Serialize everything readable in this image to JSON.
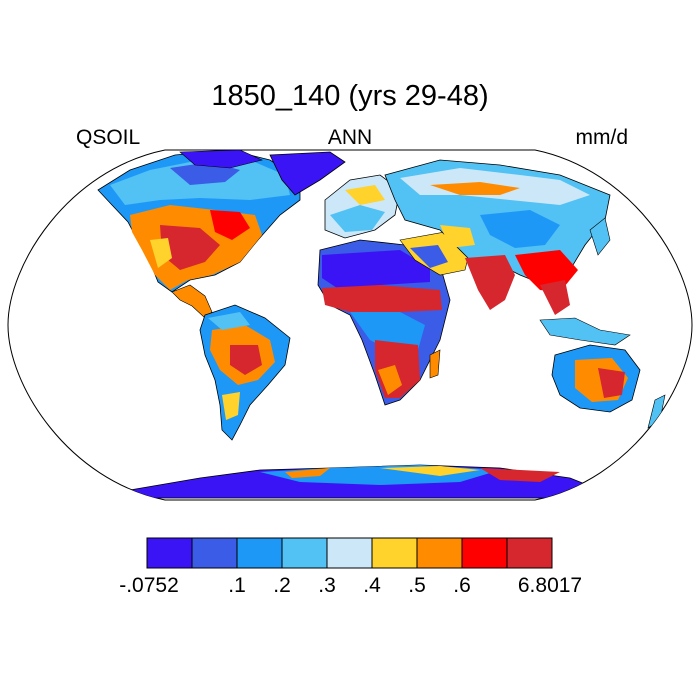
{
  "header": {
    "title": "1850_140 (yrs 29-48)",
    "left_label": "QSOIL",
    "center_label": "ANN",
    "right_label": "mm/d"
  },
  "colorbar": {
    "colors": [
      "#3b14f5",
      "#3a5ce6",
      "#1e98f7",
      "#52c1f3",
      "#cce8f8",
      "#ffd22c",
      "#ff8c00",
      "#ff0000",
      "#d6272e"
    ],
    "labels": [
      "-.0752",
      ".1",
      ".2",
      ".3",
      ".4",
      ".5",
      ".6",
      "6.8017"
    ]
  },
  "style": {
    "ocean": "#ffffff",
    "outline": "#000000"
  }
}
